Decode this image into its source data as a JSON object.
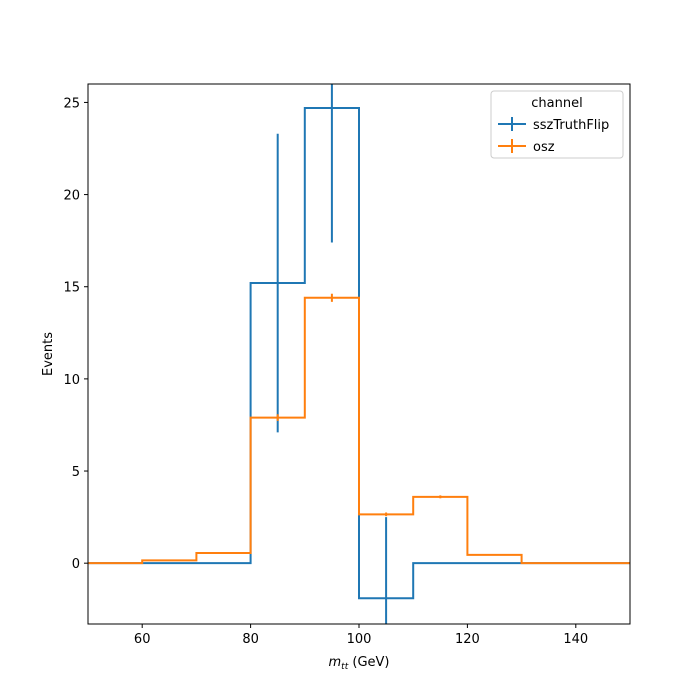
{
  "chart_data": {
    "type": "histogram",
    "xlabel_main": "m",
    "xlabel_sub": "tt",
    "xlabel_unit": " (GeV)",
    "ylabel": "Events",
    "xlim": [
      50,
      150
    ],
    "ylim": [
      -3.3,
      26
    ],
    "xticks": [
      60,
      80,
      100,
      120,
      140
    ],
    "yticks": [
      0,
      5,
      10,
      15,
      20,
      25
    ],
    "bin_edges": [
      50,
      60,
      70,
      80,
      90,
      100,
      110,
      120,
      130,
      140,
      150
    ],
    "legend": {
      "title": "channel",
      "position": "top-right"
    },
    "series": [
      {
        "name": "sszTruthFlip",
        "color": "#1f77b4",
        "values": [
          0,
          0,
          0,
          15.2,
          24.7,
          -1.9,
          0,
          0,
          0,
          0
        ],
        "errors": [
          0,
          0,
          0,
          8.1,
          7.3,
          4.4,
          0,
          0,
          0,
          0
        ]
      },
      {
        "name": "osz",
        "color": "#ff7f0e",
        "values": [
          0,
          0.15,
          0.55,
          7.9,
          14.4,
          2.65,
          3.6,
          0.45,
          0,
          0
        ],
        "errors": [
          0,
          0,
          0,
          0.18,
          0.22,
          0.1,
          0.08,
          0,
          0,
          0
        ]
      }
    ]
  }
}
